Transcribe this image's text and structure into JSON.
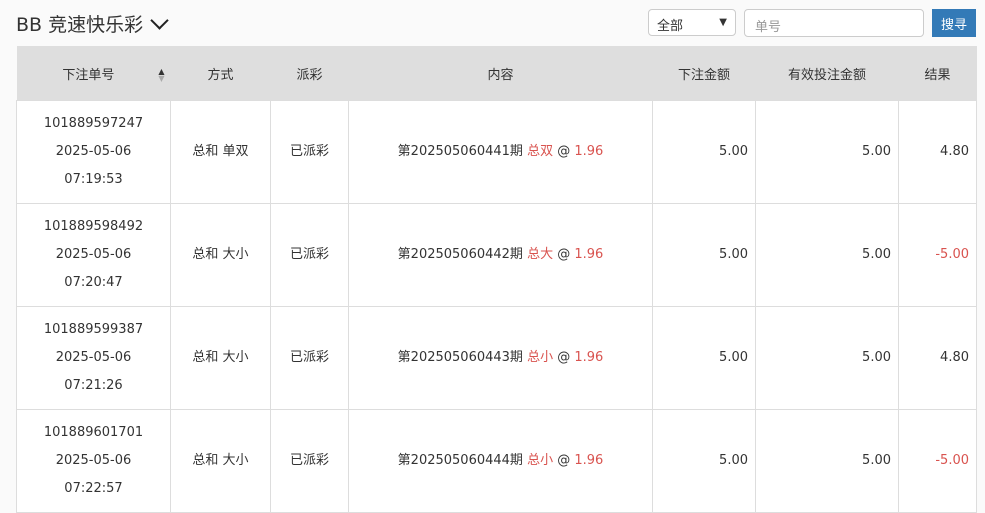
{
  "header": {
    "title": "BB 竞速快乐彩",
    "filter_value": "全部",
    "search_placeholder": "单号",
    "search_label": "搜寻"
  },
  "table": {
    "columns": [
      "下注单号",
      "方式",
      "派彩",
      "内容",
      "下注金额",
      "有效投注金额",
      "结果"
    ],
    "rows": [
      {
        "id": "101889597247",
        "date": "2025-05-06",
        "time": "07:19:53",
        "method": "总和 单双",
        "payout": "已派彩",
        "period": "第202505060441期",
        "pick": "总双",
        "at": "@",
        "odds": "1.96",
        "amount": "5.00",
        "valid": "5.00",
        "result": "4.80",
        "loss": false
      },
      {
        "id": "101889598492",
        "date": "2025-05-06",
        "time": "07:20:47",
        "method": "总和 大小",
        "payout": "已派彩",
        "period": "第202505060442期",
        "pick": "总大",
        "at": "@",
        "odds": "1.96",
        "amount": "5.00",
        "valid": "5.00",
        "result": "-5.00",
        "loss": true
      },
      {
        "id": "101889599387",
        "date": "2025-05-06",
        "time": "07:21:26",
        "method": "总和 大小",
        "payout": "已派彩",
        "period": "第202505060443期",
        "pick": "总小",
        "at": "@",
        "odds": "1.96",
        "amount": "5.00",
        "valid": "5.00",
        "result": "4.80",
        "loss": false
      },
      {
        "id": "101889601701",
        "date": "2025-05-06",
        "time": "07:22:57",
        "method": "总和 大小",
        "payout": "已派彩",
        "period": "第202505060444期",
        "pick": "总小",
        "at": "@",
        "odds": "1.96",
        "amount": "5.00",
        "valid": "5.00",
        "result": "-5.00",
        "loss": true
      }
    ]
  },
  "colors": {
    "accent": "#337ab7",
    "loss": "#d9534f"
  }
}
